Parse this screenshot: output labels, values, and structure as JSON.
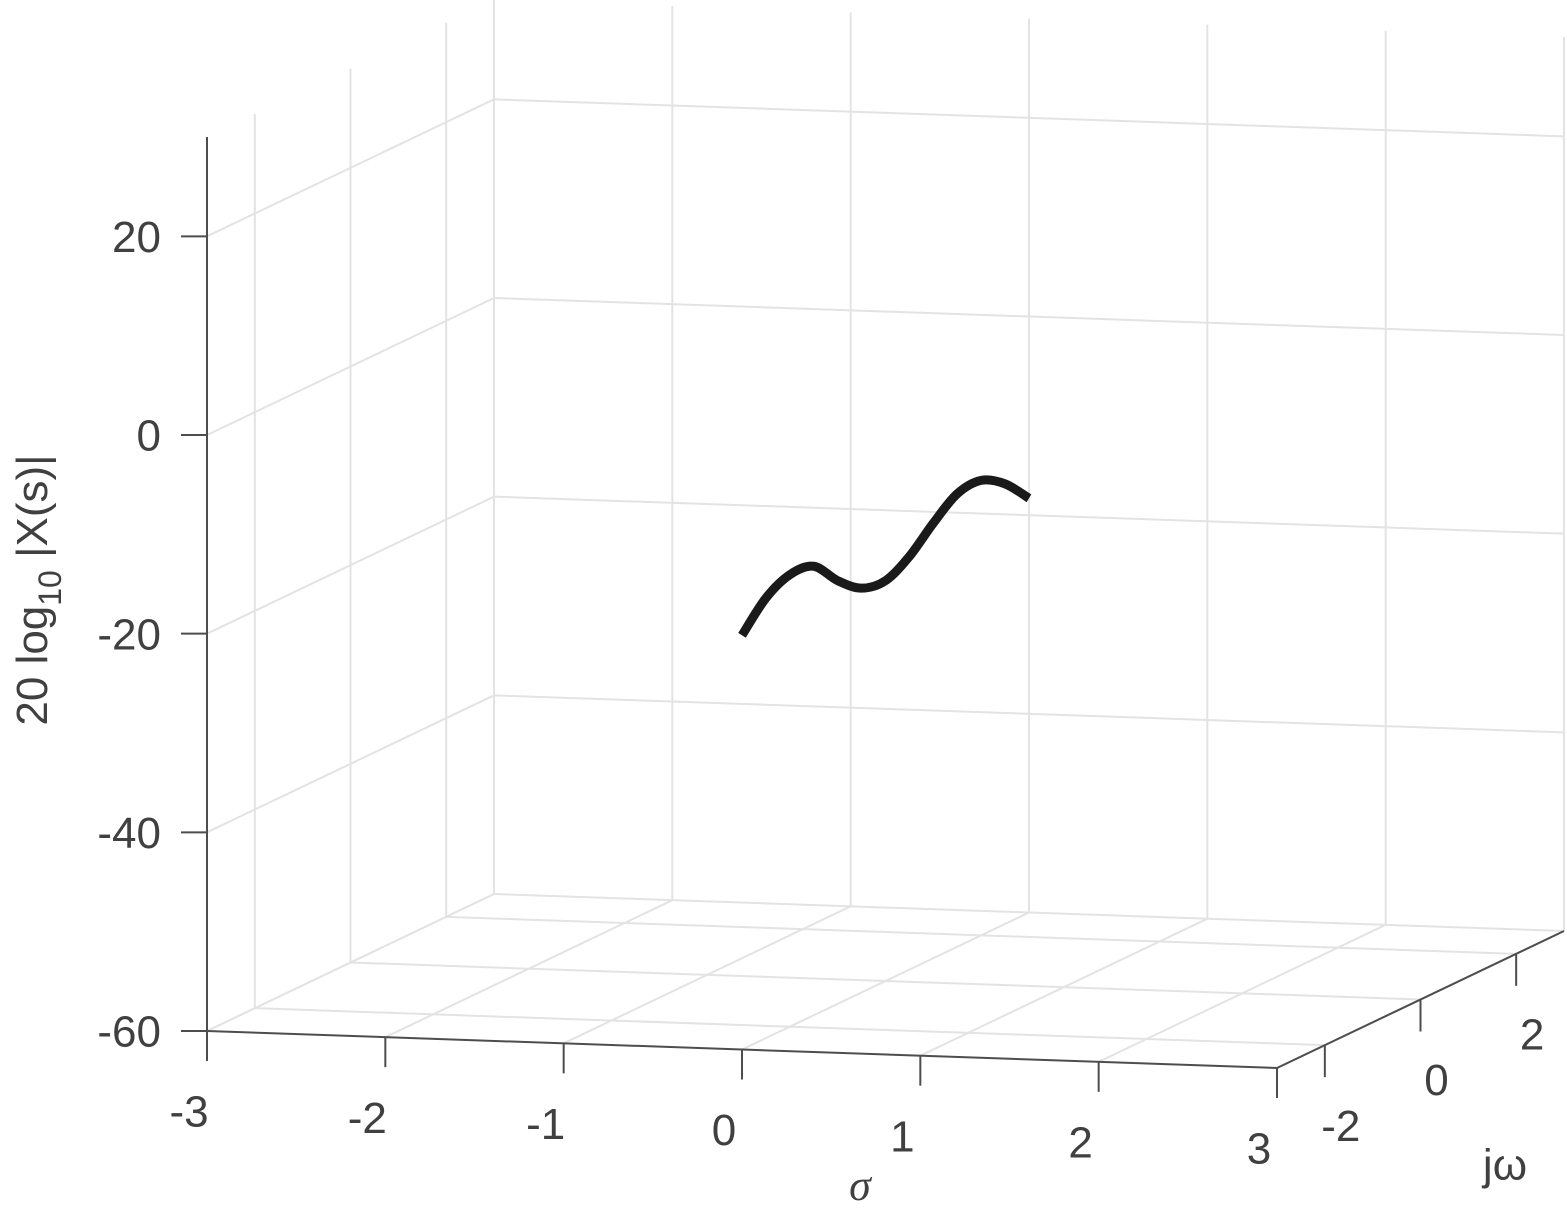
{
  "chart_data": {
    "type": "line3d",
    "xlabel": "σ",
    "ylabel": "jω",
    "zlabel": {
      "text": "20 log",
      "subscript": "10",
      "suffix": "|X(s)|"
    },
    "xlim": [
      -3,
      3
    ],
    "ylim": [
      -3,
      3
    ],
    "zlim": [
      -60,
      30
    ],
    "xticks": [
      -3,
      -2,
      -1,
      0,
      1,
      2,
      3
    ],
    "yticks": [
      -2,
      0,
      2
    ],
    "zticks": [
      -60,
      -40,
      -20,
      0,
      20
    ],
    "grid": true,
    "series": [
      {
        "color": "#1a1a1a",
        "sigma": 0,
        "y": [
          -3,
          -2.5,
          -2,
          -1.5,
          -1,
          -0.5,
          0,
          0.5,
          1,
          1.5,
          2,
          2.5,
          3
        ],
        "z": [
          -18.3,
          -15.7,
          -14.5,
          -14.8,
          -17.4,
          -19.3,
          -19.7,
          -18.4,
          -16.2,
          -14.4,
          -14.2,
          -15.7,
          -18.3
        ]
      }
    ]
  }
}
